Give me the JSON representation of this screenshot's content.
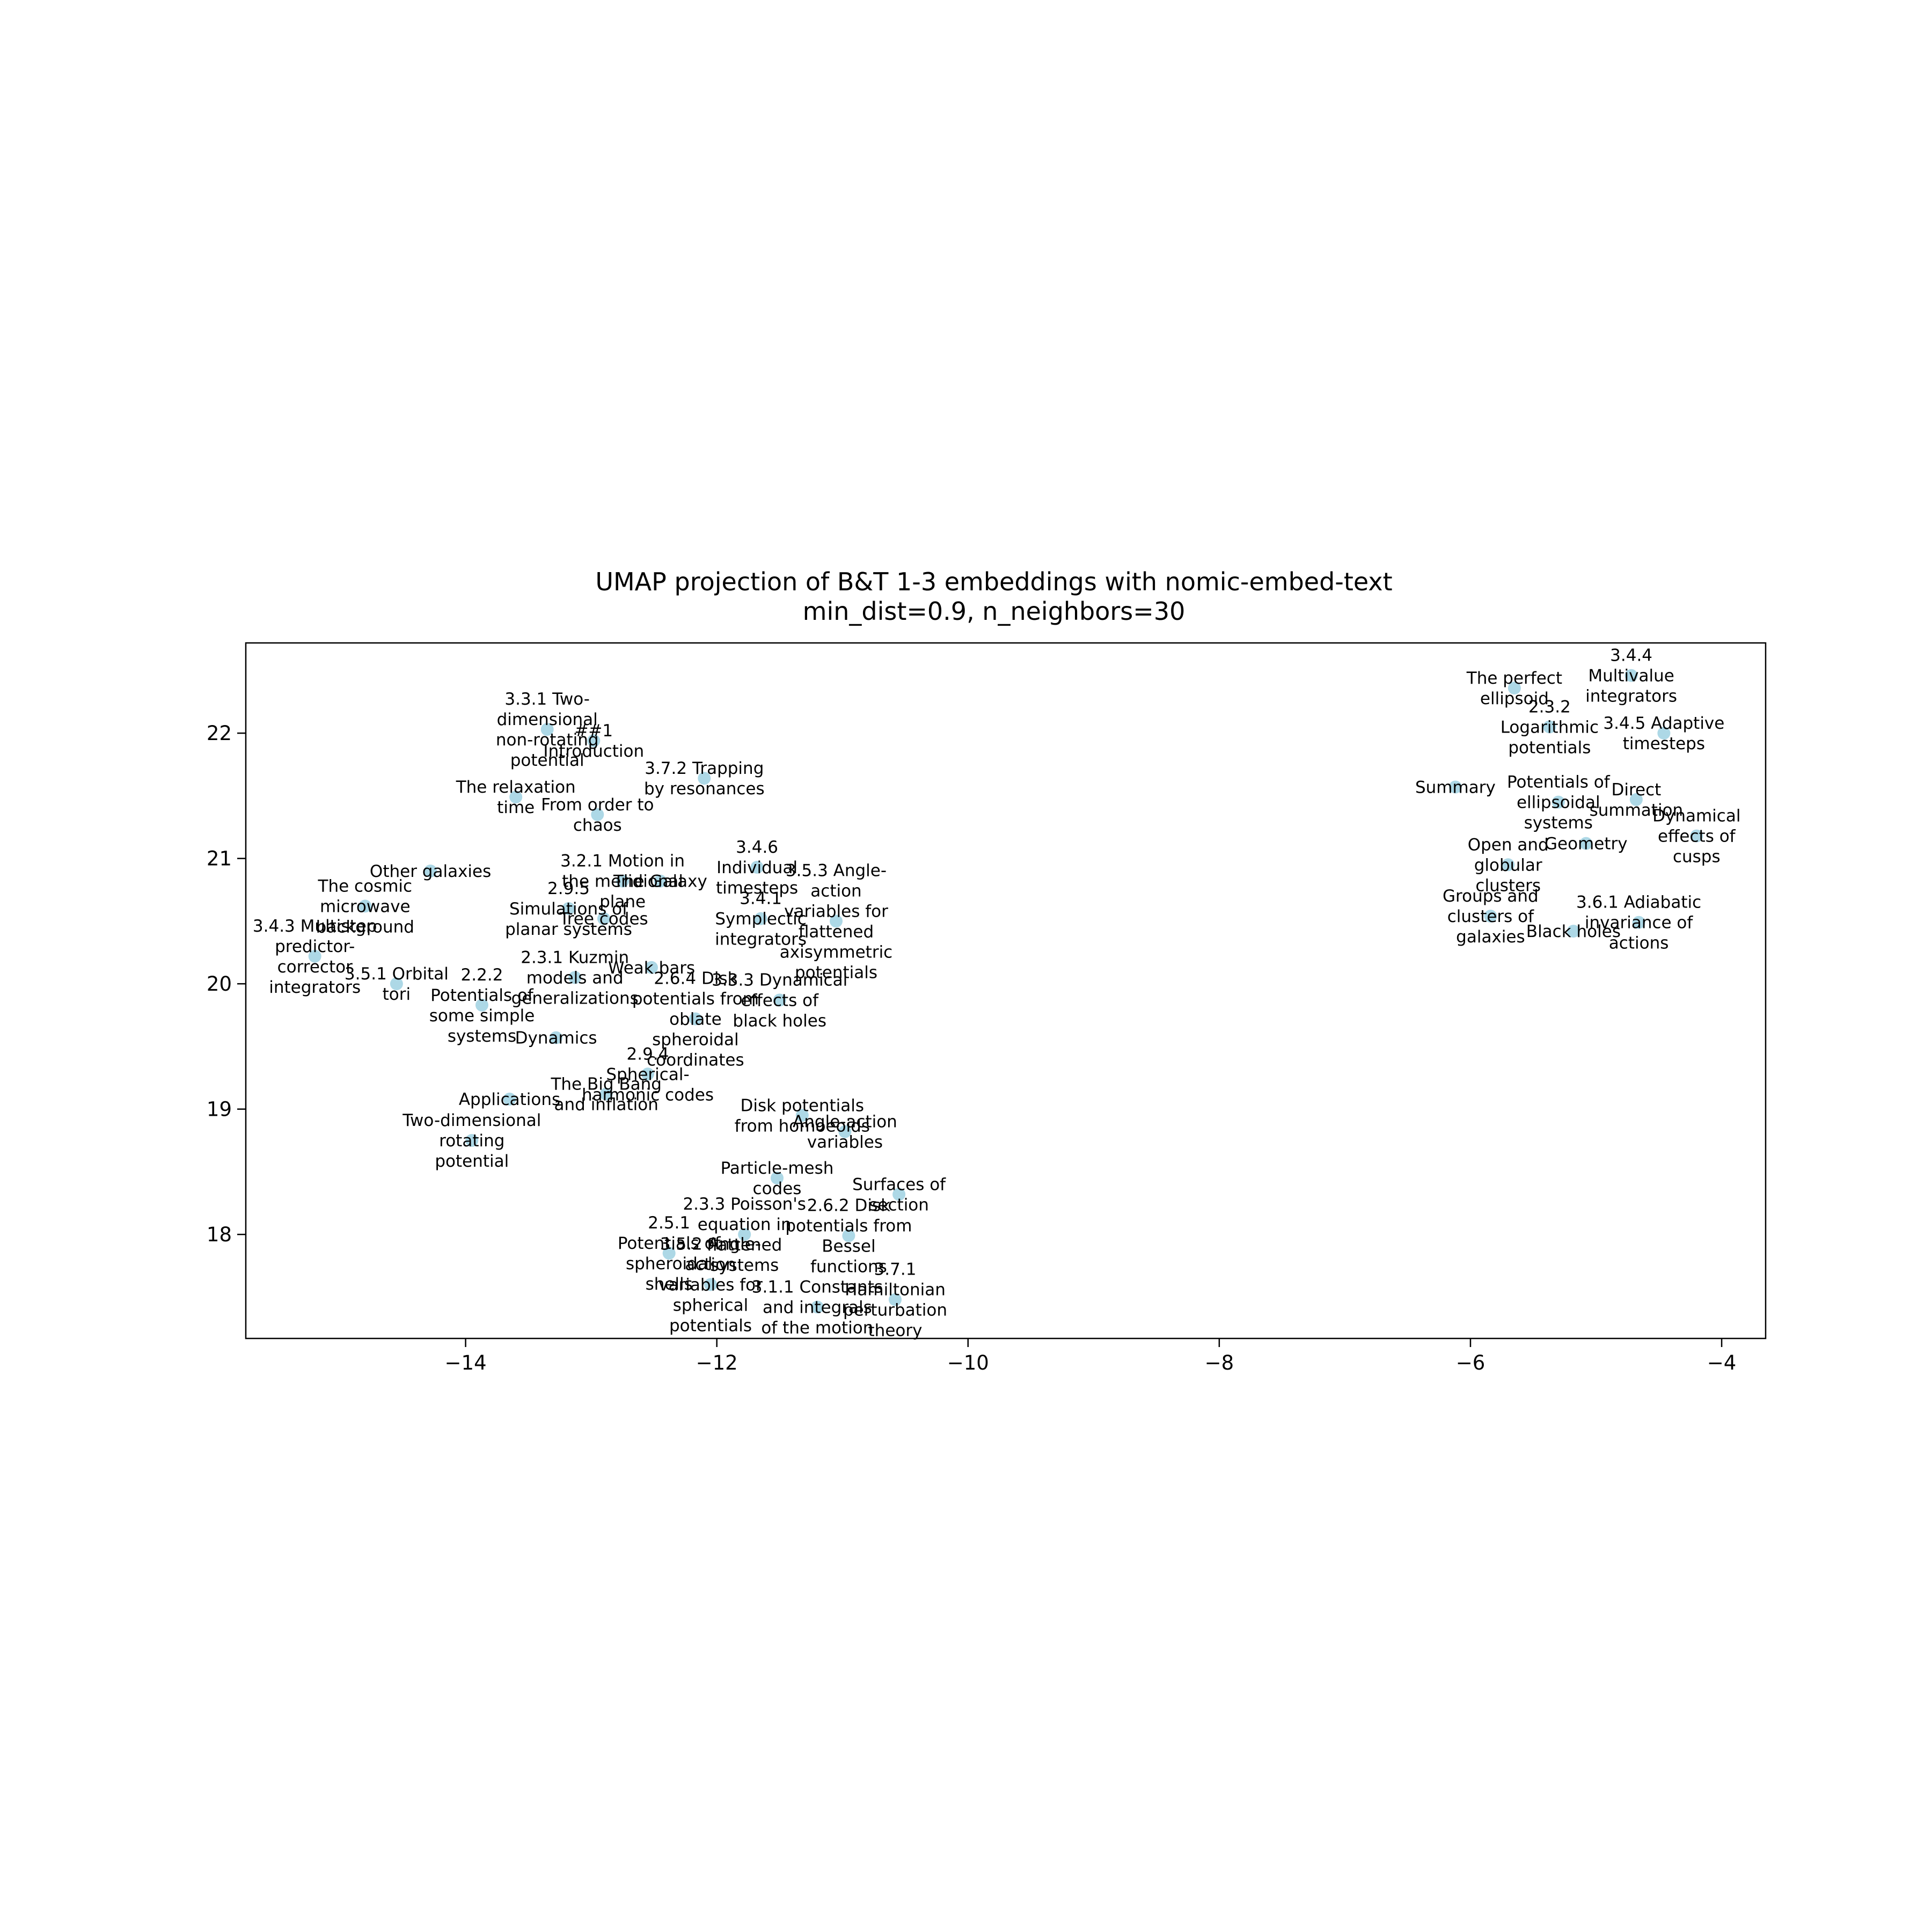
{
  "chart_data": {
    "type": "scatter",
    "title": "UMAP projection of B&T 1-3 embeddings with nomic-embed-text",
    "subtitle": "min_dist=0.9, n_neighbors=30",
    "xlabel": "",
    "ylabel": "",
    "xlim": [
      -15.75,
      -3.65
    ],
    "ylim": [
      17.17,
      22.72
    ],
    "xticks": [
      -14,
      -12,
      -10,
      -8,
      -6,
      -4
    ],
    "yticks": [
      18,
      19,
      20,
      21,
      22
    ],
    "xtick_labels": [
      "−14",
      "−12",
      "−10",
      "−8",
      "−6",
      "−4"
    ],
    "ytick_labels": [
      "18",
      "19",
      "20",
      "21",
      "22"
    ],
    "grid": false,
    "legend": "none",
    "marker_color": "#add8e6",
    "points": [
      {
        "x": -13.35,
        "y": 22.03,
        "label": "3.3.1 Two-\ndimensional\nnon-rotating\npotential"
      },
      {
        "x": -12.98,
        "y": 21.94,
        "label": "##1\nIntroduction"
      },
      {
        "x": -13.6,
        "y": 21.49,
        "label": "The relaxation\ntime"
      },
      {
        "x": -12.95,
        "y": 21.35,
        "label": "From order to\nchaos"
      },
      {
        "x": -12.1,
        "y": 21.64,
        "label": "3.7.2 Trapping\nby resonances"
      },
      {
        "x": -14.28,
        "y": 20.9,
        "label": "Other galaxies"
      },
      {
        "x": -14.8,
        "y": 20.62,
        "label": "The cosmic\nmicrowave\nbackground"
      },
      {
        "x": -15.2,
        "y": 20.22,
        "label": "3.4.3 Multistep\npredictor-\ncorrector\nintegrators"
      },
      {
        "x": -14.55,
        "y": 20.0,
        "label": "3.5.1 Orbital\ntori"
      },
      {
        "x": -13.87,
        "y": 19.83,
        "label": "2.2.2\nPotentials of\nsome simple\nsystems"
      },
      {
        "x": -13.28,
        "y": 19.57,
        "label": "Dynamics"
      },
      {
        "x": -12.75,
        "y": 20.82,
        "label": "3.2.1 Motion in\nthe meridional\nplane"
      },
      {
        "x": -12.45,
        "y": 20.82,
        "label": "The Galaxy"
      },
      {
        "x": -13.18,
        "y": 20.6,
        "label": "2.9.5\nSimulations of\nplanar systems"
      },
      {
        "x": -12.9,
        "y": 20.52,
        "label": "Tree codes"
      },
      {
        "x": -13.13,
        "y": 20.05,
        "label": "2.3.1 Kuzmin\nmodels and\ngeneralizations"
      },
      {
        "x": -12.52,
        "y": 20.13,
        "label": "Weak bars"
      },
      {
        "x": -12.17,
        "y": 19.72,
        "label": "2.6.4 Disk\npotentials from\noblate\nspheroidal\ncoordinates"
      },
      {
        "x": -12.88,
        "y": 19.12,
        "label": "The Big Bang\nand inflation"
      },
      {
        "x": -12.55,
        "y": 19.28,
        "label": "2.9.4\nSpherical-\nharmonic codes"
      },
      {
        "x": -11.68,
        "y": 20.93,
        "label": "3.4.6\nIndividual\ntimesteps"
      },
      {
        "x": -11.65,
        "y": 20.52,
        "label": "3.4.1\nSymplectic\nintegrators"
      },
      {
        "x": -11.05,
        "y": 20.5,
        "label": "3.5.3 Angle-\naction\nvariables for\nflattened\naxisymmetric\npotentials"
      },
      {
        "x": -11.5,
        "y": 19.87,
        "label": "3.3.3 Dynamical\neffects of\nblack holes"
      },
      {
        "x": -13.65,
        "y": 19.08,
        "label": "Applications"
      },
      {
        "x": -13.95,
        "y": 18.75,
        "label": "Two-dimensional\nrotating\npotential"
      },
      {
        "x": -11.32,
        "y": 18.95,
        "label": "Disk potentials\nfrom homoeoids"
      },
      {
        "x": -10.98,
        "y": 18.82,
        "label": "Angle-action\nvariables"
      },
      {
        "x": -11.52,
        "y": 18.45,
        "label": "Particle-mesh\ncodes"
      },
      {
        "x": -10.55,
        "y": 18.32,
        "label": "Surfaces of\nsection"
      },
      {
        "x": -11.78,
        "y": 18.0,
        "label": "2.3.3 Poisson's\nequation in\nflattened\nsystems"
      },
      {
        "x": -10.95,
        "y": 17.99,
        "label": "2.6.2 Disk\npotentials from\nBessel\nfunctions"
      },
      {
        "x": -12.38,
        "y": 17.85,
        "label": "2.5.1\nPotentials of\nspheroidal\nshells"
      },
      {
        "x": -12.05,
        "y": 17.6,
        "label": "3.5.2 Angle-\naction\nvariables for\nspherical\npotentials"
      },
      {
        "x": -11.2,
        "y": 17.42,
        "label": "3.1.1 Constants\nand integrals\nof the motion"
      },
      {
        "x": -10.58,
        "y": 17.48,
        "label": "3.7.1\nHamiltonian\nperturbation\ntheory"
      },
      {
        "x": -5.65,
        "y": 22.36,
        "label": "The perfect\nellipsoid"
      },
      {
        "x": -4.72,
        "y": 22.46,
        "label": "3.4.4\nMultivalue\nintegrators"
      },
      {
        "x": -5.37,
        "y": 22.05,
        "label": "2.3.2\nLogarithmic\npotentials"
      },
      {
        "x": -4.46,
        "y": 22.0,
        "label": "3.4.5 Adaptive\ntimesteps"
      },
      {
        "x": -6.12,
        "y": 21.57,
        "label": "Summary"
      },
      {
        "x": -5.3,
        "y": 21.45,
        "label": "Potentials of\nellipsoidal\nsystems"
      },
      {
        "x": -4.68,
        "y": 21.47,
        "label": "Direct\nsummation"
      },
      {
        "x": -4.2,
        "y": 21.18,
        "label": "Dynamical\neffects of\ncusps"
      },
      {
        "x": -5.08,
        "y": 21.12,
        "label": "Geometry"
      },
      {
        "x": -5.7,
        "y": 20.95,
        "label": "Open and\nglobular\nclusters"
      },
      {
        "x": -5.84,
        "y": 20.54,
        "label": "Groups and\nclusters of\ngalaxies"
      },
      {
        "x": -5.18,
        "y": 20.42,
        "label": "Black holes"
      },
      {
        "x": -4.66,
        "y": 20.49,
        "label": "3.6.1 Adiabatic\ninvariance of\nactions"
      }
    ]
  }
}
